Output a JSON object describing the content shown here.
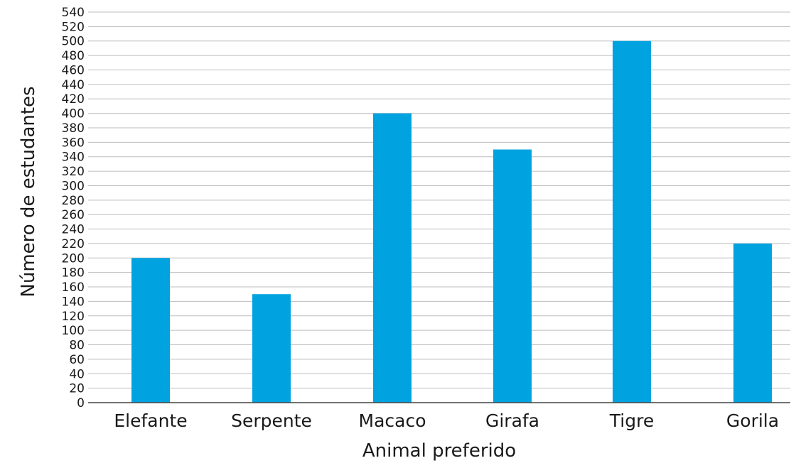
{
  "chart_data": {
    "type": "bar",
    "title": "",
    "xlabel": "Animal preferido",
    "ylabel": "Número de estudantes",
    "categories": [
      "Elefante",
      "Serpente",
      "Macaco",
      "Girafa",
      "Tigre",
      "Gorila"
    ],
    "values": [
      200,
      150,
      400,
      350,
      500,
      220
    ],
    "ylim": [
      0,
      540
    ],
    "ytick_step": 20,
    "grid": true,
    "legend": "none",
    "bar_color": "#00a3e0"
  }
}
